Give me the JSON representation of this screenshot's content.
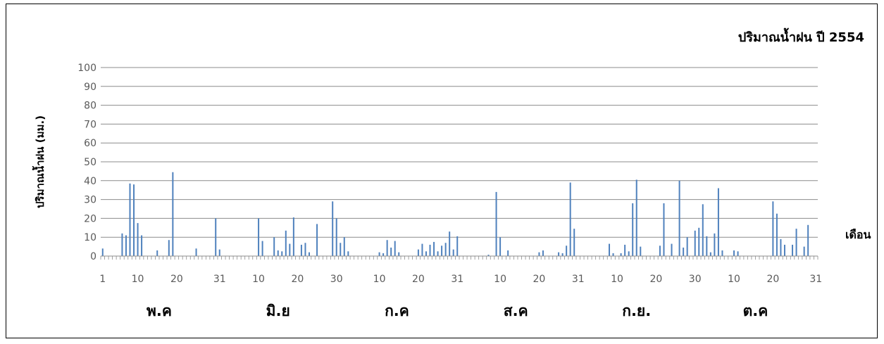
{
  "chart_data": {
    "type": "bar",
    "title": "ปริมาณน้ำฝน ปี 2554",
    "ylabel": "ปริมาณน้ำฝน (มม.)",
    "xlabel": "เดือน",
    "ylim": [
      0,
      100
    ],
    "yticks": [
      "0",
      "10",
      "20",
      "30",
      "40",
      "50",
      "60",
      "70",
      "80",
      "90",
      "100"
    ],
    "xtick_labels": [
      "1",
      "10",
      "20",
      "31",
      "10",
      "20",
      "30",
      "10",
      "20",
      "31",
      "10",
      "20",
      "31",
      "10",
      "20",
      "30",
      "10",
      "20",
      "31"
    ],
    "xtick_days": [
      1,
      10,
      20,
      31,
      41,
      51,
      61,
      72,
      82,
      92,
      103,
      113,
      123,
      133,
      143,
      153,
      163,
      173,
      184
    ],
    "months": [
      "พ.ค",
      "มิ.ย",
      "ก.ค",
      "ส.ค",
      "ก.ย.",
      "ต.ค"
    ],
    "month_centers": [
      15.5,
      46,
      76.5,
      107,
      138,
      168.5
    ],
    "grid": true,
    "series_color": "#4F81BD",
    "bars": [
      [
        1,
        4
      ],
      [
        6,
        12
      ],
      [
        7,
        11
      ],
      [
        8,
        38.5
      ],
      [
        9,
        38
      ],
      [
        10,
        17.5
      ],
      [
        11,
        11
      ],
      [
        15,
        3
      ],
      [
        18,
        8.5
      ],
      [
        19,
        44.5
      ],
      [
        25,
        4
      ],
      [
        30,
        20
      ],
      [
        31,
        3.5
      ],
      [
        41,
        20
      ],
      [
        42,
        8
      ],
      [
        45,
        10
      ],
      [
        46,
        3
      ],
      [
        47,
        2.5
      ],
      [
        48,
        13.5
      ],
      [
        49,
        6.5
      ],
      [
        50,
        20.5
      ],
      [
        52,
        6
      ],
      [
        53,
        7
      ],
      [
        54,
        2
      ],
      [
        56,
        17
      ],
      [
        60,
        29
      ],
      [
        61,
        20
      ],
      [
        62,
        7
      ],
      [
        63,
        10
      ],
      [
        64,
        2.5
      ],
      [
        72,
        2
      ],
      [
        73,
        1.5
      ],
      [
        74,
        8.5
      ],
      [
        75,
        4.5
      ],
      [
        76,
        8
      ],
      [
        77,
        2
      ],
      [
        82,
        3.5
      ],
      [
        83,
        6.5
      ],
      [
        84,
        2.5
      ],
      [
        85,
        6
      ],
      [
        86,
        7.5
      ],
      [
        87,
        2.5
      ],
      [
        88,
        5.5
      ],
      [
        89,
        7
      ],
      [
        90,
        13
      ],
      [
        91,
        3.5
      ],
      [
        92,
        10.5
      ],
      [
        100,
        0.7
      ],
      [
        102,
        34
      ],
      [
        103,
        10
      ],
      [
        105,
        3
      ],
      [
        113,
        2
      ],
      [
        114,
        3
      ],
      [
        118,
        2
      ],
      [
        119,
        1.5
      ],
      [
        120,
        5.5
      ],
      [
        121,
        39
      ],
      [
        122,
        14.5
      ],
      [
        131,
        6.5
      ],
      [
        132,
        1.5
      ],
      [
        134,
        1.5
      ],
      [
        135,
        6
      ],
      [
        136,
        2.5
      ],
      [
        137,
        28
      ],
      [
        138,
        40.5
      ],
      [
        139,
        5
      ],
      [
        144,
        5.5
      ],
      [
        145,
        28
      ],
      [
        147,
        6.5
      ],
      [
        149,
        40
      ],
      [
        150,
        4.5
      ],
      [
        151,
        10
      ],
      [
        153,
        13.5
      ],
      [
        154,
        15
      ],
      [
        155,
        27.5
      ],
      [
        156,
        10.5
      ],
      [
        157,
        2
      ],
      [
        158,
        12
      ],
      [
        159,
        36
      ],
      [
        160,
        3
      ],
      [
        163,
        3
      ],
      [
        164,
        2.5
      ],
      [
        173,
        29
      ],
      [
        174,
        22.5
      ],
      [
        175,
        9
      ],
      [
        176,
        6
      ],
      [
        178,
        6
      ],
      [
        179,
        14.5
      ],
      [
        181,
        5
      ],
      [
        182,
        16.5
      ]
    ]
  }
}
